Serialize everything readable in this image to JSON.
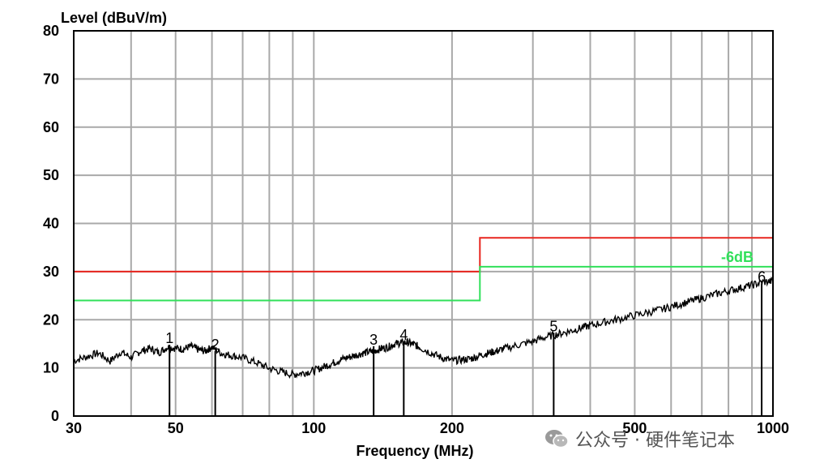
{
  "chart_data": {
    "type": "line",
    "ylabel": "Level (dBuV/m)",
    "xlabel": "Frequency (MHz)",
    "xscale": "log",
    "xlim": [
      30,
      1000
    ],
    "ylim": [
      0,
      80
    ],
    "grid": true,
    "x_tick_labels": [
      {
        "value": 30,
        "label": "30"
      },
      {
        "value": 50,
        "label": "50"
      },
      {
        "value": 100,
        "label": "100"
      },
      {
        "value": 200,
        "label": "200"
      },
      {
        "value": 500,
        "label": "500"
      },
      {
        "value": 1000,
        "label": "1000"
      }
    ],
    "x_gridlines": [
      30,
      40,
      50,
      60,
      70,
      80,
      90,
      100,
      200,
      300,
      400,
      500,
      600,
      700,
      800,
      900,
      1000
    ],
    "y_tick_labels": [
      {
        "value": 0,
        "label": "0"
      },
      {
        "value": 10,
        "label": "10"
      },
      {
        "value": 20,
        "label": "20"
      },
      {
        "value": 30,
        "label": "30"
      },
      {
        "value": 40,
        "label": "40"
      },
      {
        "value": 50,
        "label": "50"
      },
      {
        "value": 60,
        "label": "60"
      },
      {
        "value": 70,
        "label": "70"
      },
      {
        "value": 80,
        "label": "80"
      }
    ],
    "limits": [
      {
        "color": "#e8251e",
        "points": [
          [
            30,
            30
          ],
          [
            230,
            30
          ],
          [
            230,
            37
          ],
          [
            1000,
            37
          ]
        ]
      },
      {
        "color": "#31e05a",
        "label": "-6dB",
        "points": [
          [
            30,
            24
          ],
          [
            230,
            24
          ],
          [
            230,
            31
          ],
          [
            1000,
            31
          ]
        ]
      }
    ],
    "trace": {
      "color": "#000000",
      "points": [
        [
          30,
          11.5
        ],
        [
          32,
          12.3
        ],
        [
          34,
          13.1
        ],
        [
          36,
          11.4
        ],
        [
          38,
          13.3
        ],
        [
          40,
          12.2
        ],
        [
          42,
          13.5
        ],
        [
          44,
          14.0
        ],
        [
          46,
          13.2
        ],
        [
          48,
          14.3
        ],
        [
          50,
          14.1
        ],
        [
          52,
          13.9
        ],
        [
          54,
          14.5
        ],
        [
          56,
          13.8
        ],
        [
          58,
          13.5
        ],
        [
          60,
          14.3
        ],
        [
          63,
          13.0
        ],
        [
          66,
          12.6
        ],
        [
          70,
          12.1
        ],
        [
          75,
          11.1
        ],
        [
          80,
          9.9
        ],
        [
          85,
          9.2
        ],
        [
          90,
          8.6
        ],
        [
          95,
          9.0
        ],
        [
          100,
          9.4
        ],
        [
          105,
          10.2
        ],
        [
          110,
          11.0
        ],
        [
          115,
          11.8
        ],
        [
          120,
          12.3
        ],
        [
          125,
          12.8
        ],
        [
          130,
          13.2
        ],
        [
          135,
          13.5
        ],
        [
          140,
          14.0
        ],
        [
          145,
          14.3
        ],
        [
          150,
          15.0
        ],
        [
          155,
          15.2
        ],
        [
          160,
          15.3
        ],
        [
          165,
          14.9
        ],
        [
          170,
          14.3
        ],
        [
          180,
          13.1
        ],
        [
          190,
          12.1
        ],
        [
          200,
          11.5
        ],
        [
          210,
          11.7
        ],
        [
          220,
          11.9
        ],
        [
          230,
          12.6
        ],
        [
          240,
          13.1
        ],
        [
          250,
          13.5
        ],
        [
          260,
          14.0
        ],
        [
          280,
          14.8
        ],
        [
          300,
          15.5
        ],
        [
          320,
          16.4
        ],
        [
          340,
          17.0
        ],
        [
          360,
          17.6
        ],
        [
          380,
          18.2
        ],
        [
          400,
          18.8
        ],
        [
          430,
          19.5
        ],
        [
          460,
          20.1
        ],
        [
          500,
          20.9
        ],
        [
          540,
          21.6
        ],
        [
          580,
          22.3
        ],
        [
          620,
          23.1
        ],
        [
          660,
          23.8
        ],
        [
          700,
          24.5
        ],
        [
          750,
          25.3
        ],
        [
          800,
          26.0
        ],
        [
          850,
          26.6
        ],
        [
          900,
          27.2
        ],
        [
          950,
          27.8
        ],
        [
          1000,
          28.0
        ]
      ]
    },
    "markers": [
      {
        "label": "1",
        "x": 48.5,
        "y": 14.8
      },
      {
        "label": "2",
        "x": 61,
        "y": 13.5
      },
      {
        "label": "3",
        "x": 135,
        "y": 14.5
      },
      {
        "label": "4",
        "x": 157,
        "y": 15.5
      },
      {
        "label": "5",
        "x": 333,
        "y": 17.3
      },
      {
        "label": "6",
        "x": 945,
        "y": 27.5
      }
    ]
  },
  "watermark": {
    "icon": "wechat-icon",
    "text": "公众号 · 硬件笔记本"
  }
}
